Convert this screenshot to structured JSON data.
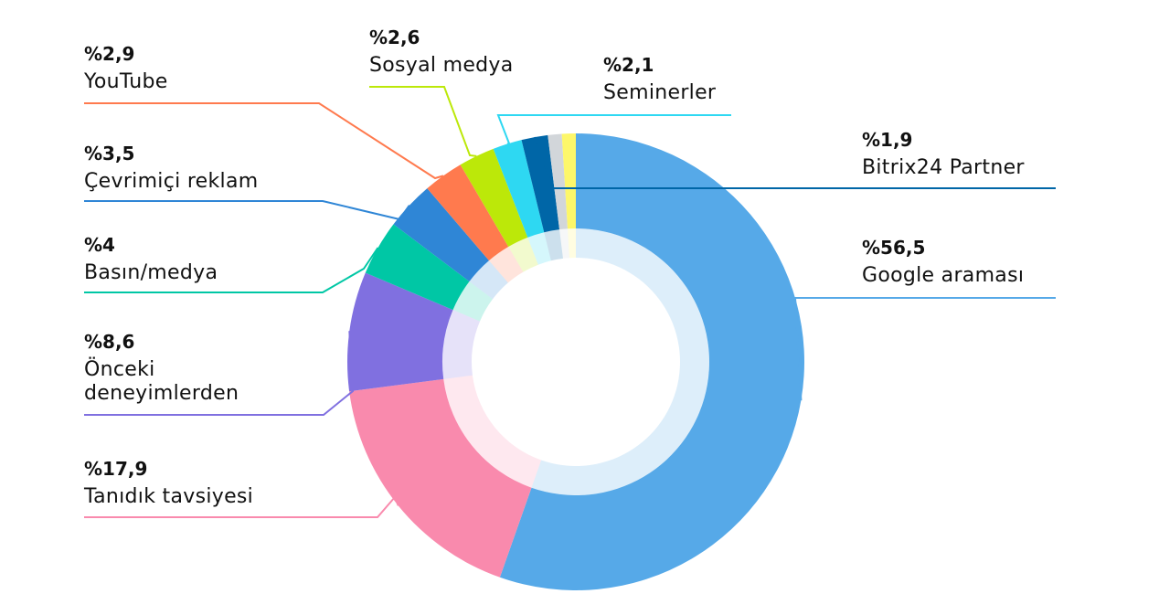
{
  "chart_data": {
    "type": "pie",
    "variant": "donut",
    "start_angle_deg": 0,
    "direction": "clockwise",
    "slices": [
      {
        "label": "Google araması",
        "value": 56.5,
        "value_label": "%56,5",
        "color": "#56a9e8"
      },
      {
        "label": "Tanıdık tavsiyesi",
        "value": 17.9,
        "value_label": "%17,9",
        "color": "#f98aad"
      },
      {
        "label": "Önceki deneyimlerden",
        "value": 8.6,
        "value_label": "%8,6",
        "color": "#8070e0"
      },
      {
        "label": "Basın/medya",
        "value": 4,
        "value_label": "%4",
        "color": "#00c7a5"
      },
      {
        "label": "Çevrimiçi reklam",
        "value": 3.5,
        "value_label": "%3,5",
        "color": "#2f86d6"
      },
      {
        "label": "YouTube",
        "value": 2.9,
        "value_label": "%2,9",
        "color": "#ff7a4e"
      },
      {
        "label": "Sosyal medya",
        "value": 2.6,
        "value_label": "%2,6",
        "color": "#bce809"
      },
      {
        "label": "Seminerler",
        "value": 2.1,
        "value_label": "%2,1",
        "color": "#2ed8f2"
      },
      {
        "label": "Bitrix24 Partner",
        "value": 1.9,
        "value_label": "%1,9",
        "color": "#0066a7"
      },
      {
        "label": "",
        "value": 1.0,
        "value_label": "",
        "color": "#d2d6da"
      },
      {
        "label": "",
        "value": 1.0,
        "value_label": "",
        "color": "#fdf76a"
      }
    ]
  }
}
